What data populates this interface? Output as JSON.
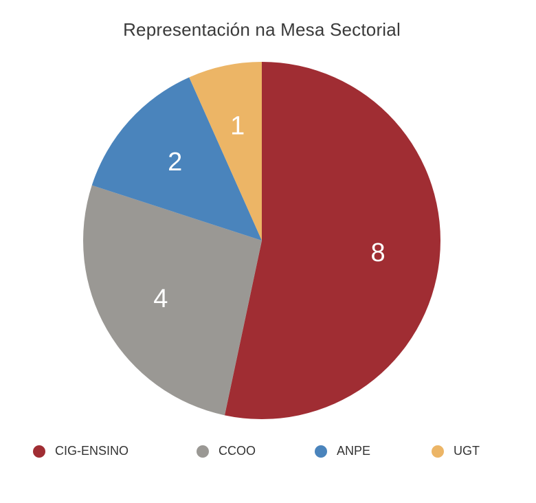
{
  "chart_data": {
    "type": "pie",
    "title": "Representación na Mesa Sectorial",
    "categories": [
      "CIG-ENSINO",
      "CCOO",
      "ANPE",
      "UGT"
    ],
    "values": [
      8,
      4,
      2,
      1
    ],
    "data_labels": [
      "8",
      "4",
      "2",
      "1"
    ],
    "colors": [
      "#a02d33",
      "#9a9894",
      "#4a84bc",
      "#ecb566"
    ],
    "legend_position": "bottom"
  }
}
